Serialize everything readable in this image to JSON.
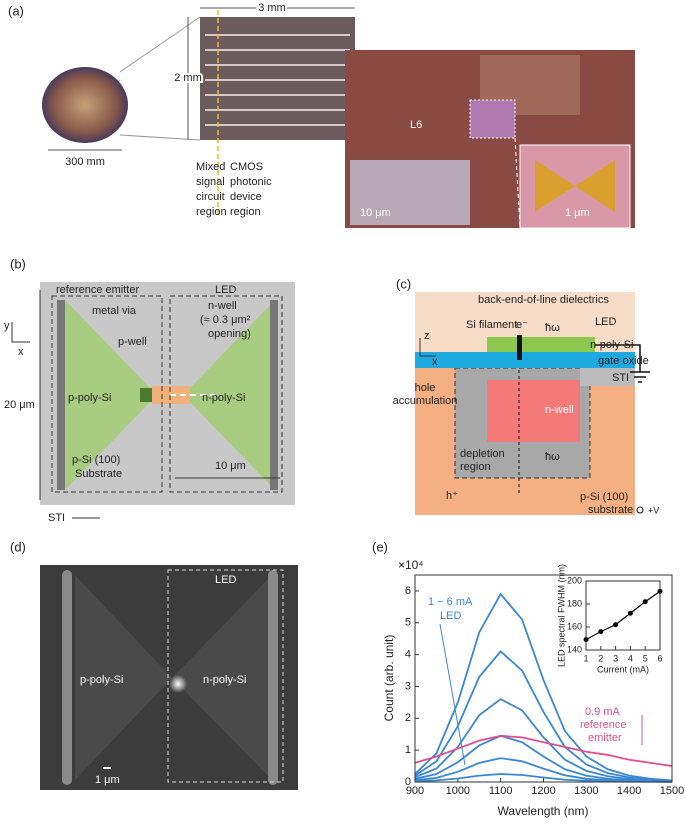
{
  "panels": {
    "a": {
      "label": "(a)",
      "width": "3 mm",
      "height": "2 mm",
      "wafer": "300 mm",
      "chip_mark": "L6",
      "left_region": [
        "Mixed",
        "signal",
        "circuit",
        "region"
      ],
      "right_region": [
        "CMOS",
        "photonic",
        "device",
        "region"
      ],
      "scale_zoom": "10 μm",
      "scale_inset": "1 μm"
    },
    "b": {
      "label": "(b)",
      "reference": "reference emitter",
      "led": "LED",
      "via": "metal via",
      "nwell": [
        "n-well",
        "(≈ 0.3 μm²",
        "opening)"
      ],
      "pwell": "p-well",
      "ppoly": "p-poly-Si",
      "npoly": "n-poly-Si",
      "substrate": [
        "p-Si (100)",
        "Substrate"
      ],
      "width": "10 μm",
      "height": "20 μm",
      "sti": "STI",
      "axis_y": "y",
      "axis_x": "x"
    },
    "c": {
      "label": "(c)",
      "beol": "back-end-of-line dielectrics",
      "led": "LED",
      "filament": "Si filament",
      "electron": "e⁻",
      "photon": "ħω",
      "npoly": "n-poly-Si",
      "oxide": "gate oxide",
      "sti": "STI",
      "hole": [
        "hole",
        "accumulation"
      ],
      "nwell": "n-well",
      "depletion": [
        "depletion",
        "region"
      ],
      "photon2": "ħω",
      "hole_carrier": "h⁺",
      "substrate": [
        "p-Si (100)",
        "substrate"
      ],
      "bias": "+V",
      "axis_z": "z",
      "axis_x": "x"
    },
    "d": {
      "label": "(d)",
      "led": "LED",
      "ppoly": "p-poly-Si",
      "npoly": "n-poly-Si",
      "scale": "1 μm"
    },
    "e": {
      "label": "(e)",
      "multiplier": "×10⁴",
      "led_note": [
        "1 − 6 mA",
        "LED"
      ],
      "ref_note": [
        "0.9 mA",
        "reference",
        "emitter"
      ]
    }
  },
  "chart_data": [
    {
      "type": "line",
      "x_label": "Wavelength (nm)",
      "y_label": "Count (arb. unit)",
      "x": [
        900,
        950,
        1000,
        1050,
        1100,
        1150,
        1200,
        1250,
        1300,
        1350,
        1400,
        1450,
        1500
      ],
      "xlim": [
        900,
        1500
      ],
      "xticks": [
        900,
        1000,
        1100,
        1200,
        1300,
        1400,
        1500
      ],
      "ylim": [
        0,
        6.5
      ],
      "yticks": [
        0,
        1,
        2,
        3,
        4,
        5,
        6
      ],
      "series": [
        {
          "color": "#3a87d4",
          "values": [
            0.03,
            0.05,
            0.11,
            0.2,
            0.25,
            0.22,
            0.14,
            0.07,
            0.04,
            0.02,
            0.01,
            0.01,
            0.0
          ]
        },
        {
          "color": "#3a87d4",
          "values": [
            0.06,
            0.13,
            0.32,
            0.6,
            0.75,
            0.65,
            0.42,
            0.21,
            0.1,
            0.05,
            0.03,
            0.02,
            0.01
          ]
        },
        {
          "color": "#3a87d4",
          "values": [
            0.1,
            0.25,
            0.62,
            1.15,
            1.45,
            1.25,
            0.8,
            0.4,
            0.2,
            0.1,
            0.05,
            0.03,
            0.02
          ]
        },
        {
          "color": "#3a87d4",
          "values": [
            0.15,
            0.42,
            1.1,
            2.1,
            2.6,
            2.25,
            1.4,
            0.7,
            0.35,
            0.18,
            0.09,
            0.05,
            0.03
          ]
        },
        {
          "color": "#3a87d4",
          "values": [
            0.2,
            0.65,
            1.75,
            3.3,
            4.1,
            3.5,
            2.2,
            1.1,
            0.55,
            0.28,
            0.14,
            0.07,
            0.04
          ]
        },
        {
          "color": "#3a87d4",
          "values": [
            0.25,
            0.9,
            2.5,
            4.7,
            5.9,
            5.1,
            3.2,
            1.6,
            0.8,
            0.4,
            0.2,
            0.1,
            0.05
          ]
        },
        {
          "color": "#e0508a",
          "values": [
            0.6,
            0.8,
            1.05,
            1.3,
            1.45,
            1.4,
            1.25,
            1.1,
            0.95,
            0.85,
            0.7,
            0.6,
            0.5
          ]
        }
      ]
    },
    {
      "type": "line",
      "x_label": "Current (mA)",
      "y_label": "LED spectral FWHM (nm)",
      "x": [
        1,
        2,
        3,
        4,
        5,
        6
      ],
      "xlim": [
        1,
        6
      ],
      "xticks": [
        1,
        2,
        3,
        4,
        5,
        6
      ],
      "ylim": [
        140,
        200
      ],
      "yticks": [
        140,
        160,
        180,
        200
      ],
      "series": [
        {
          "color": "#000000",
          "values": [
            149,
            156,
            162,
            172,
            182,
            191
          ]
        }
      ]
    }
  ]
}
